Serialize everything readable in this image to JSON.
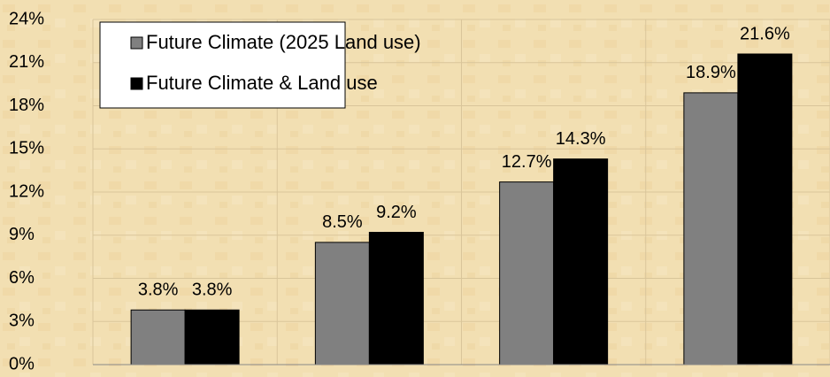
{
  "chart_data": {
    "type": "bar",
    "categories": [
      null,
      null,
      null,
      null
    ],
    "series": [
      {
        "name": "Future Climate (2025 Land use)",
        "color": "#808080",
        "values": [
          3.8,
          8.5,
          12.7,
          18.9
        ],
        "value_labels": [
          "3.8%",
          "8.5%",
          "12.7%",
          "18.9%"
        ]
      },
      {
        "name": "Future Climate & Land use",
        "color": "#000000",
        "values": [
          3.8,
          9.2,
          14.3,
          21.6
        ],
        "value_labels": [
          "3.8%",
          "9.2%",
          "14.3%",
          "21.6%"
        ]
      }
    ],
    "ylim": [
      0,
      24
    ],
    "yticks": [
      {
        "value": 0,
        "label": "0%"
      },
      {
        "value": 3,
        "label": "3%"
      },
      {
        "value": 6,
        "label": "6%"
      },
      {
        "value": 9,
        "label": "9%"
      },
      {
        "value": 12,
        "label": "12%"
      },
      {
        "value": 15,
        "label": "15%"
      },
      {
        "value": 18,
        "label": "18%"
      },
      {
        "value": 21,
        "label": "21%"
      },
      {
        "value": 24,
        "label": "24%"
      }
    ],
    "grid": true,
    "legend": "upper left"
  }
}
